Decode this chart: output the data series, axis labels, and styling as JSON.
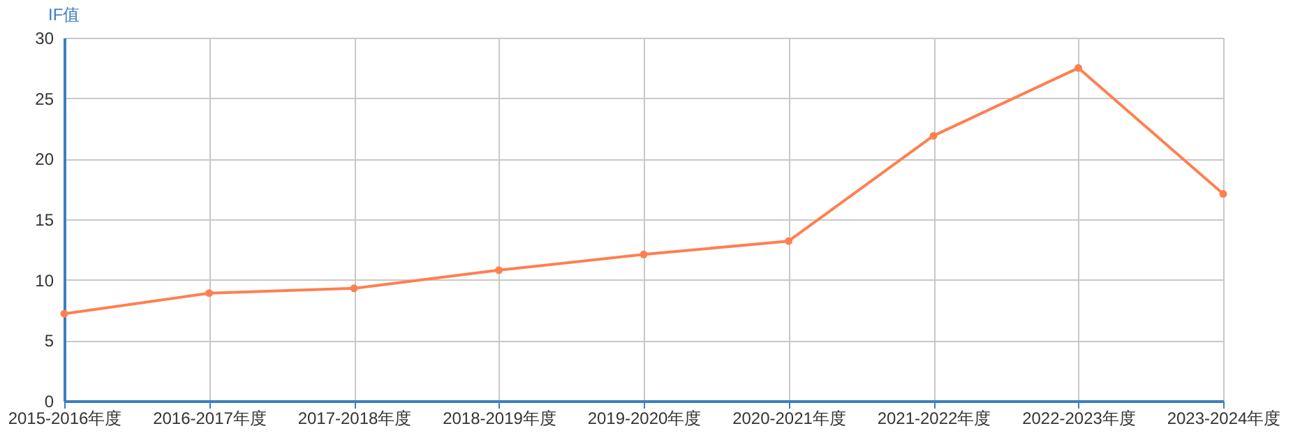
{
  "chart_data": {
    "type": "line",
    "ylabel": "IF值",
    "categories": [
      "2015-2016年度",
      "2016-2017年度",
      "2017-2018年度",
      "2018-2019年度",
      "2019-2020年度",
      "2020-2021年度",
      "2021-2022年度",
      "2022-2023年度",
      "2023-2024年度"
    ],
    "series": [
      {
        "color": "#ff7f50",
        "values": [
          7.2,
          8.9,
          9.3,
          10.8,
          12.1,
          13.2,
          21.9,
          27.5,
          17.1
        ]
      }
    ],
    "ylim": [
      0,
      30
    ],
    "yticks": [
      0,
      5,
      10,
      15,
      20,
      25,
      30
    ],
    "grid": true,
    "marker": "circle",
    "line_style": "solid"
  }
}
